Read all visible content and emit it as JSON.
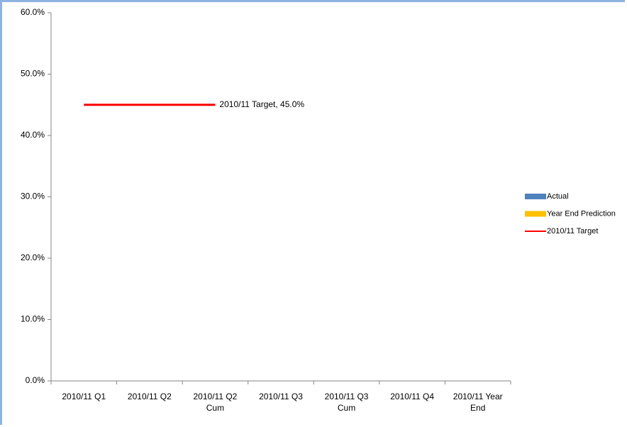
{
  "chart_data": {
    "type": "bar-line",
    "categories": [
      "2010/11 Q1",
      "2010/11 Q2",
      "2010/11 Q2 Cum",
      "2010/11 Q3",
      "2010/11 Q3 Cum",
      "2010/11 Q4",
      "2010/11 Year End"
    ],
    "series": [
      {
        "name": "Actual",
        "type": "bar",
        "color": "#4f81bd",
        "values": [
          null,
          null,
          null,
          null,
          null,
          null,
          null
        ]
      },
      {
        "name": "Year End Prediction",
        "type": "bar",
        "color": "#ffc000",
        "values": [
          null,
          null,
          null,
          null,
          null,
          null,
          null
        ]
      },
      {
        "name": "2010/11 Target",
        "type": "line",
        "color": "#ff0000",
        "values": [
          45,
          45,
          45,
          null,
          null,
          null,
          null
        ],
        "value_labels": [
          null,
          null,
          "2010/11 Target, 45.0%",
          null,
          null,
          null,
          null
        ]
      }
    ],
    "ylim": [
      0,
      60
    ],
    "yticks": [
      {
        "value": 0,
        "label": "0.0%"
      },
      {
        "value": 10,
        "label": "10.0%"
      },
      {
        "value": 20,
        "label": "20.0%"
      },
      {
        "value": 30,
        "label": "30.0%"
      },
      {
        "value": 40,
        "label": "40.0%"
      },
      {
        "value": 50,
        "label": "50.0%"
      },
      {
        "value": 60,
        "label": "60.0%"
      }
    ],
    "legend": "right"
  }
}
